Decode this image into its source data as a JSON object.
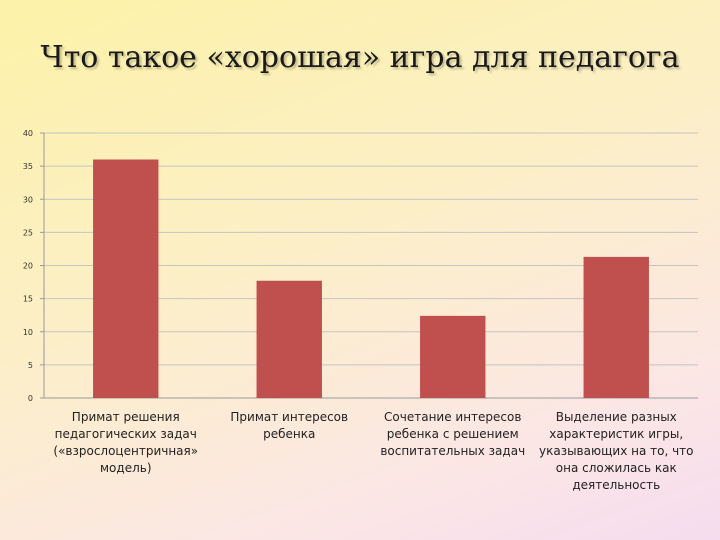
{
  "chart_data": {
    "type": "bar",
    "title": "Что такое «хорошая» игра для педагога",
    "categories": [
      "Примат решения педагогических задач («взрослоцентричная» модель)",
      "Примат интересов ребенка",
      "Сочетание интересов ребенка с решением воспитательных задач",
      "Выделение разных характеристик игры, указывающих на то, что она сложилась как деятельность"
    ],
    "category_lines": [
      [
        "Примат решения",
        "педагогических задач",
        "(«взрослоцентричная»",
        "модель)"
      ],
      [
        "Примат интересов",
        "ребенка"
      ],
      [
        "Сочетание интересов",
        "ребенка с решением",
        "воспитательных задач"
      ],
      [
        "Выделение разных",
        "характеристик игры,",
        "указывающих на то, что",
        "она сложилась как",
        "деятельность"
      ]
    ],
    "values": [
      36,
      17.7,
      12.4,
      21.3
    ],
    "ylim": [
      0,
      40
    ],
    "yticks": [
      0,
      5,
      10,
      15,
      20,
      25,
      30,
      35,
      40
    ],
    "bar_color": "#c0504d",
    "grid": true
  }
}
